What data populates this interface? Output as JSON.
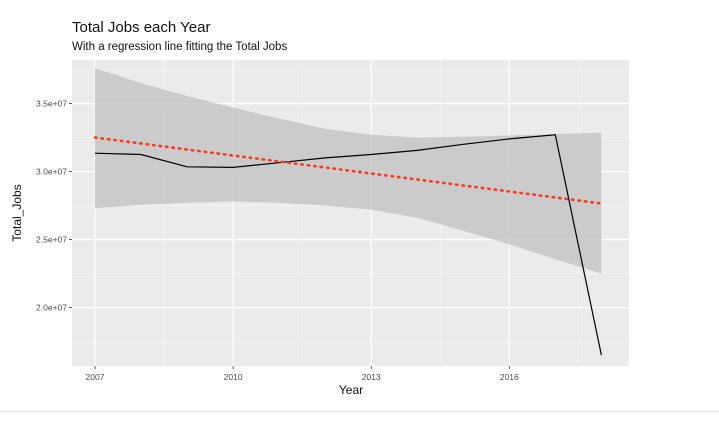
{
  "chart_data": {
    "type": "line",
    "title": "Total Jobs each Year",
    "subtitle": "With a regression line fitting the Total Jobs",
    "xlabel": "Year",
    "ylabel": "Total_Jobs",
    "xlim": [
      2006.5,
      2018.6
    ],
    "ylim": [
      15700000,
      38200000
    ],
    "x_ticks": [
      2007,
      2010,
      2013,
      2016
    ],
    "x_tick_labels": [
      "2007",
      "2010",
      "2013",
      "2016"
    ],
    "y_ticks": [
      20000000,
      25000000,
      30000000,
      35000000
    ],
    "y_tick_labels": [
      "2.0e+07",
      "2.5e+07",
      "3.0e+07",
      "3.5e+07"
    ],
    "grid": true,
    "legend": "none",
    "series": [
      {
        "x": [
          2007,
          2008,
          2009,
          2010,
          2011,
          2012,
          2013,
          2014,
          2015,
          2016,
          2017,
          2018
        ],
        "values": [
          31350000,
          31250000,
          30350000,
          30300000,
          30650000,
          31000000,
          31250000,
          31550000,
          32000000,
          32400000,
          32700000,
          16500000
        ],
        "color": "#000000"
      }
    ],
    "regression": {
      "x": [
        2007,
        2018
      ],
      "values": [
        32500000,
        27650000
      ],
      "color": "#ff3b1f",
      "style": "dotted"
    },
    "confidence_band": {
      "x": [
        2007,
        2008,
        2009,
        2010,
        2011,
        2012,
        2013,
        2014,
        2015,
        2016,
        2017,
        2018
      ],
      "upper": [
        37600000,
        36500000,
        35550000,
        34700000,
        33900000,
        33150000,
        32700000,
        32500000,
        32550000,
        32650000,
        32750000,
        32850000
      ],
      "lower": [
        27300000,
        27550000,
        27700000,
        27800000,
        27700000,
        27500000,
        27200000,
        26600000,
        25650000,
        24650000,
        23550000,
        22500000
      ],
      "color": "#bebebe"
    },
    "panel_color": "#ebebeb"
  }
}
